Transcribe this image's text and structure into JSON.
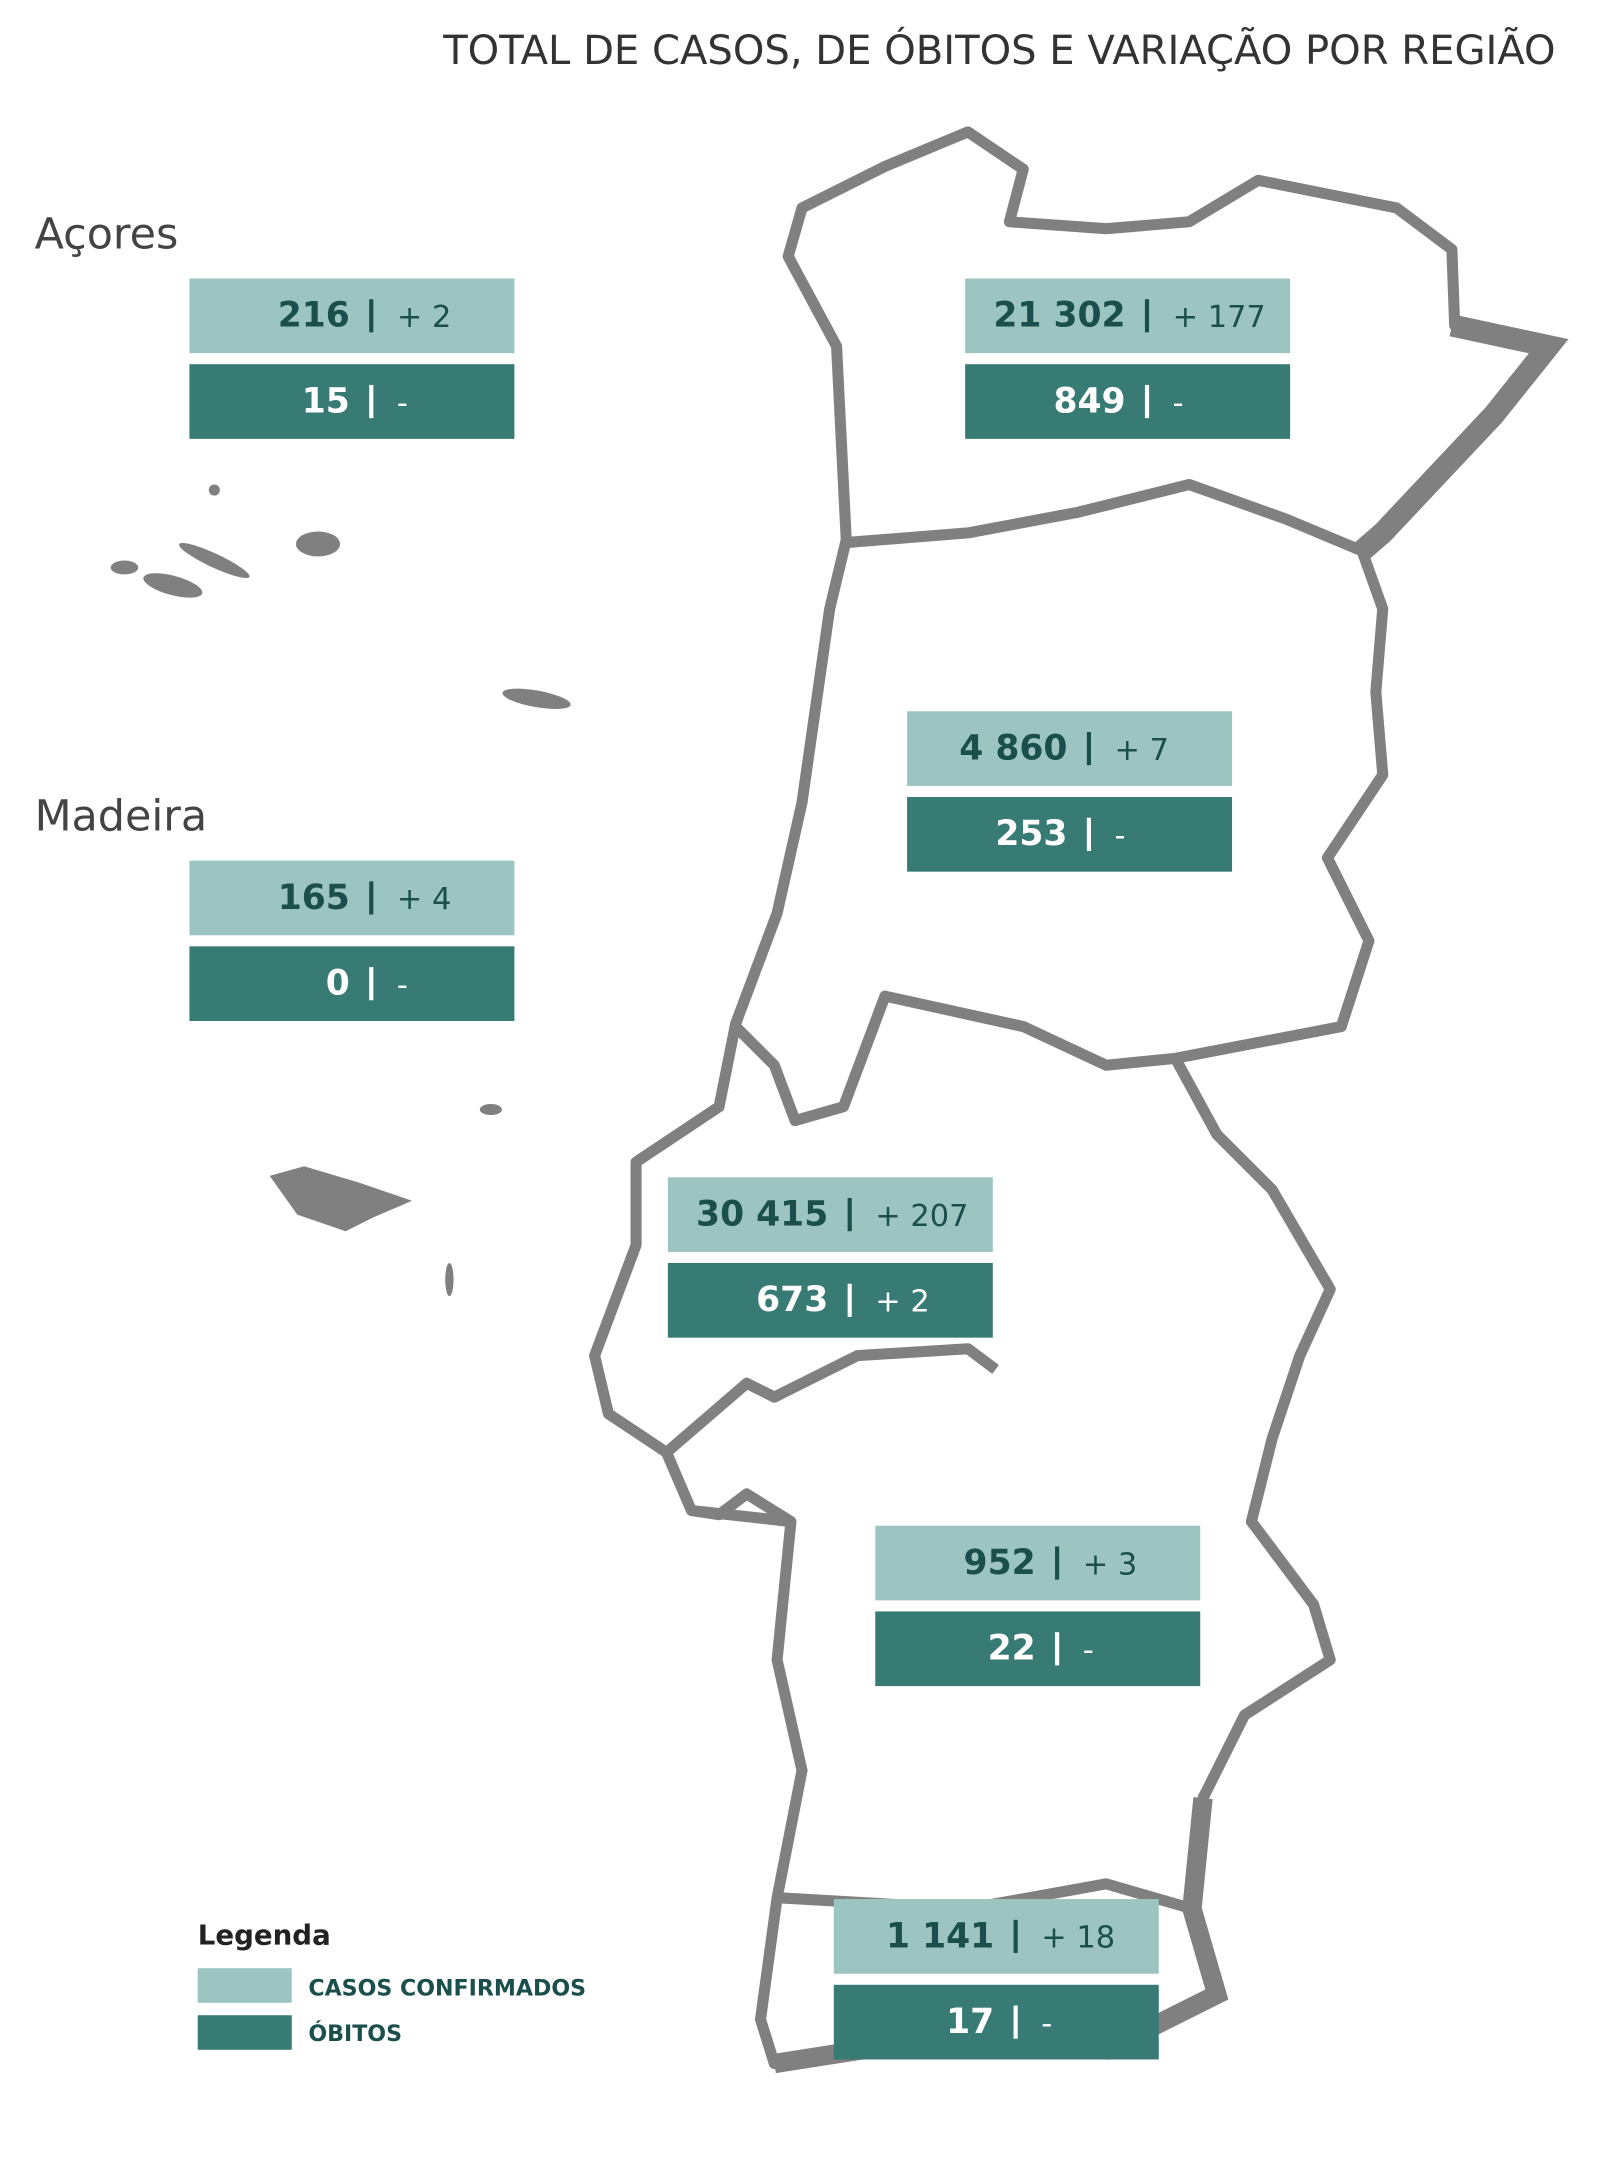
{
  "title": "TOTAL DE CASOS, DE ÓBITOS  E VARIAÇÃO POR REGIÃO",
  "regions": [
    {
      "name": "Açores",
      "cases": "216",
      "cases_change": "+ 2",
      "deaths": "15",
      "deaths_change": "-"
    },
    {
      "cases": "21 302",
      "cases_change": "+ 177",
      "deaths": "849",
      "deaths_change": "-"
    },
    {
      "cases": "4 860",
      "cases_change": "+ 7",
      "deaths": "253",
      "deaths_change": "-"
    },
    {
      "name": "Madeira",
      "cases": "165",
      "cases_change": "+ 4",
      "deaths": "0",
      "deaths_change": "-"
    },
    {
      "cases": "30 415",
      "cases_change": "+ 207",
      "deaths": "673",
      "deaths_change": "+ 2"
    },
    {
      "cases": "952",
      "cases_change": "+ 3",
      "deaths": "22",
      "deaths_change": "-"
    },
    {
      "cases": "1 141",
      "cases_change": "+ 18",
      "deaths": "17",
      "deaths_change": "-"
    }
  ],
  "legend": {
    "title": "Legenda",
    "items": [
      "CASOS CONFIRMADOS",
      "ÓBITOS"
    ]
  }
}
